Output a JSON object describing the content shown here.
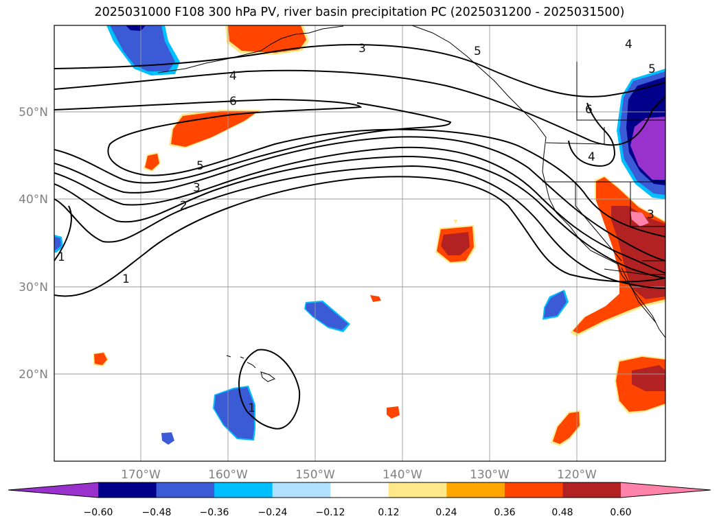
{
  "title": "2025031000 F108 300 hPa PV, river basin precipitation PC (2025031200 - 2025031500)",
  "map": {
    "lon_labels": [
      "170°W",
      "160°W",
      "150°W",
      "140°W",
      "130°W",
      "120°W"
    ],
    "lat_labels": [
      "50°N",
      "40°N",
      "30°N",
      "20°N"
    ],
    "contour_labels": [
      {
        "text": "3"
      },
      {
        "text": "4"
      },
      {
        "text": "5"
      },
      {
        "text": "4"
      },
      {
        "text": "5"
      },
      {
        "text": "6"
      },
      {
        "text": "5"
      },
      {
        "text": "3"
      },
      {
        "text": "2"
      },
      {
        "text": "1"
      },
      {
        "text": "1"
      },
      {
        "text": "6"
      },
      {
        "text": "4"
      },
      {
        "text": "1"
      },
      {
        "text": "3"
      }
    ]
  },
  "colorbar": {
    "ticks": [
      "−0.60",
      "−0.48",
      "−0.36",
      "−0.24",
      "−0.12",
      "0.12",
      "0.24",
      "0.36",
      "0.48",
      "0.60"
    ],
    "colors": [
      "#9932cc",
      "#00008b",
      "#3b5bd6",
      "#00bfff",
      "#b0e2ff",
      "#ffffff",
      "#ffe88a",
      "#ffa500",
      "#ff4500",
      "#b22222",
      "#ff82ab"
    ]
  }
}
